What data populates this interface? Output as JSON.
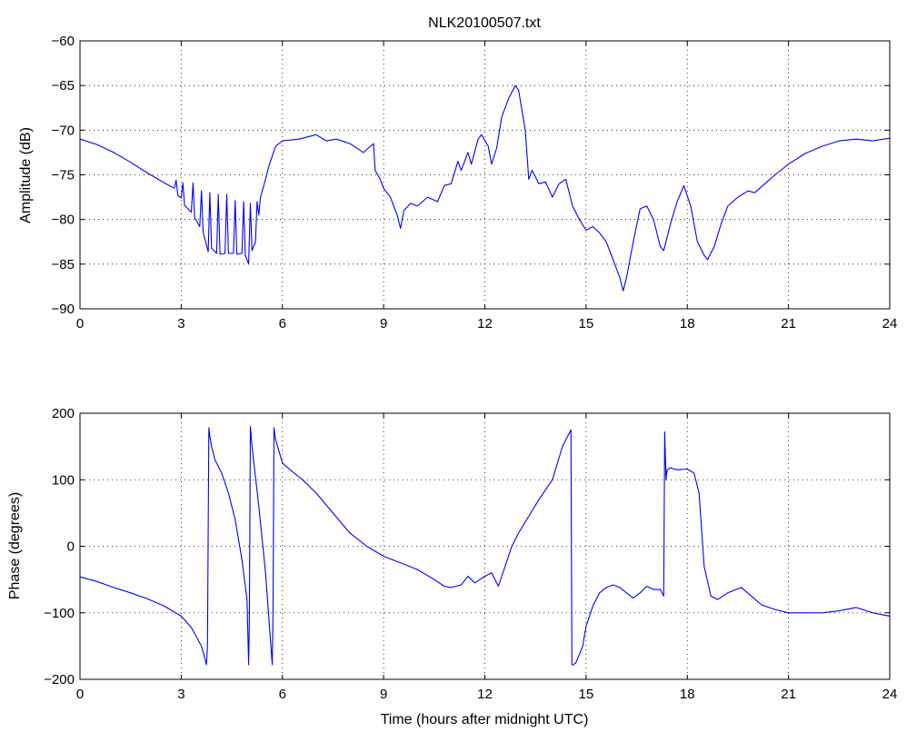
{
  "colors": {
    "series": "#0000ff",
    "axis": "#000000",
    "background": "#ffffff"
  },
  "chart_data": [
    {
      "type": "line",
      "title": "NLK20100507.txt",
      "xlabel": "",
      "ylabel": "Amplitude (dB)",
      "xlim": [
        0,
        24
      ],
      "ylim": [
        -90,
        -60
      ],
      "xticks": [
        0,
        3,
        6,
        9,
        12,
        15,
        18,
        21,
        24
      ],
      "yticks": [
        -90,
        -85,
        -80,
        -75,
        -70,
        -65,
        -60
      ],
      "grid": true,
      "series": [
        {
          "x": [
            0,
            0.5,
            1,
            1.5,
            2,
            2.5,
            2.8,
            2.85,
            2.9,
            3.0,
            3.05,
            3.1,
            3.3,
            3.35,
            3.4,
            3.55,
            3.6,
            3.65,
            3.8,
            3.85,
            3.9,
            4.05,
            4.1,
            4.15,
            4.3,
            4.35,
            4.4,
            4.55,
            4.6,
            4.65,
            4.8,
            4.85,
            4.9,
            5.0,
            5.05,
            5.1,
            5.2,
            5.25,
            5.3,
            5.35,
            5.5,
            5.6,
            5.8,
            6.0,
            6.5,
            7.0,
            7.3,
            7.6,
            8.0,
            8.4,
            8.7,
            8.75,
            8.9,
            9.0,
            9.2,
            9.4,
            9.5,
            9.6,
            9.8,
            10.0,
            10.3,
            10.6,
            10.8,
            11.0,
            11.2,
            11.3,
            11.5,
            11.6,
            11.8,
            11.9,
            12.1,
            12.2,
            12.35,
            12.5,
            12.7,
            12.9,
            13.0,
            13.2,
            13.3,
            13.4,
            13.6,
            13.8,
            14.0,
            14.2,
            14.4,
            14.6,
            14.8,
            15.0,
            15.2,
            15.4,
            15.6,
            15.8,
            16.0,
            16.1,
            16.2,
            16.4,
            16.6,
            16.8,
            17.0,
            17.2,
            17.3,
            17.5,
            17.7,
            17.9,
            18.1,
            18.3,
            18.5,
            18.6,
            18.8,
            19.0,
            19.2,
            19.5,
            19.8,
            20.0,
            20.3,
            20.6,
            21.0,
            21.5,
            22.0,
            22.5,
            23.0,
            23.5,
            24.0
          ],
          "values": [
            -71,
            -71.6,
            -72.5,
            -73.6,
            -74.8,
            -75.9,
            -76.5,
            -75.6,
            -77.3,
            -77.6,
            -75.9,
            -78.4,
            -79.2,
            -75.9,
            -79.8,
            -80.8,
            -76.8,
            -81.4,
            -83.6,
            -77.0,
            -83.2,
            -83.8,
            -77.2,
            -83.9,
            -83.8,
            -77.2,
            -83.8,
            -83.8,
            -77.9,
            -83.9,
            -83.8,
            -78.0,
            -84.0,
            -85.0,
            -78.2,
            -83.5,
            -82.5,
            -78.0,
            -79.5,
            -77.5,
            -75.5,
            -74.0,
            -71.8,
            -71.2,
            -71.0,
            -70.5,
            -71.2,
            -71.0,
            -71.5,
            -72.5,
            -71.5,
            -74.5,
            -75.5,
            -76.5,
            -77.5,
            -79.5,
            -81.0,
            -79.0,
            -78.2,
            -78.5,
            -77.5,
            -78.0,
            -76.2,
            -76.0,
            -73.5,
            -74.5,
            -72.5,
            -73.8,
            -71.0,
            -70.5,
            -71.8,
            -73.8,
            -72.0,
            -68.5,
            -66.5,
            -65.0,
            -65.5,
            -70.0,
            -75.5,
            -74.5,
            -76.0,
            -75.8,
            -77.5,
            -76.0,
            -75.5,
            -78.5,
            -80.0,
            -81.2,
            -80.8,
            -81.5,
            -82.5,
            -84.5,
            -86.5,
            -88.0,
            -86.5,
            -82.5,
            -78.8,
            -78.5,
            -80.0,
            -83.0,
            -83.5,
            -80.5,
            -78.0,
            -76.2,
            -78.5,
            -82.5,
            -84.0,
            -84.5,
            -83.0,
            -80.5,
            -78.5,
            -77.5,
            -76.8,
            -77.0,
            -76.0,
            -75.0,
            -73.8,
            -72.6,
            -71.8,
            -71.2,
            -71.0,
            -71.2,
            -70.9
          ]
        }
      ]
    },
    {
      "type": "line",
      "title": "",
      "xlabel": "Time (hours after midnight UTC)",
      "ylabel": "Phase (degrees)",
      "xlim": [
        0,
        24
      ],
      "ylim": [
        -200,
        200
      ],
      "xticks": [
        0,
        3,
        6,
        9,
        12,
        15,
        18,
        21,
        24
      ],
      "yticks": [
        -200,
        -100,
        0,
        100,
        200
      ],
      "grid": true,
      "series": [
        {
          "x": [
            0,
            0.5,
            1,
            1.5,
            2,
            2.5,
            3,
            3.3,
            3.6,
            3.75,
            3.78,
            3.82,
            3.85,
            3.9,
            4.0,
            4.2,
            4.4,
            4.6,
            4.8,
            4.95,
            5.0,
            5.02,
            5.05,
            5.1,
            5.3,
            5.5,
            5.7,
            5.72,
            5.75,
            5.8,
            6.0,
            6.3,
            6.6,
            7.0,
            7.5,
            8.0,
            8.5,
            9.0,
            9.5,
            10.0,
            10.5,
            10.8,
            11.0,
            11.3,
            11.5,
            11.7,
            12.0,
            12.2,
            12.4,
            12.6,
            12.8,
            13.0,
            13.3,
            13.6,
            14.0,
            14.3,
            14.55,
            14.58,
            14.62,
            14.7,
            14.9,
            15.0,
            15.2,
            15.4,
            15.6,
            15.8,
            16.0,
            16.2,
            16.4,
            16.6,
            16.8,
            17.0,
            17.2,
            17.3,
            17.33,
            17.37,
            17.4,
            17.5,
            17.7,
            18.0,
            18.2,
            18.35,
            18.5,
            18.7,
            18.9,
            19.2,
            19.6,
            19.9,
            20.2,
            20.6,
            21.0,
            21.5,
            22.0,
            22.5,
            23.0,
            23.5,
            24.0
          ],
          "values": [
            -46,
            -53,
            -62,
            -70,
            -79,
            -90,
            -105,
            -122,
            -150,
            -178,
            -150,
            178,
            165,
            150,
            130,
            110,
            80,
            40,
            -20,
            -80,
            -178,
            -110,
            180,
            150,
            60,
            -40,
            -178,
            -100,
            178,
            160,
            125,
            112,
            100,
            80,
            50,
            20,
            0,
            -15,
            -25,
            -35,
            -50,
            -60,
            -62,
            -58,
            -45,
            -55,
            -45,
            -40,
            -60,
            -30,
            0,
            20,
            45,
            70,
            100,
            150,
            175,
            -178,
            -178,
            -175,
            -150,
            -120,
            -90,
            -70,
            -62,
            -58,
            -62,
            -70,
            -78,
            -70,
            -60,
            -65,
            -65,
            -75,
            172,
            100,
            115,
            118,
            115,
            116,
            110,
            80,
            -30,
            -75,
            -80,
            -70,
            -62,
            -75,
            -88,
            -95,
            -100,
            -100,
            -100,
            -97,
            -92,
            -100,
            -105
          ]
        }
      ]
    }
  ]
}
